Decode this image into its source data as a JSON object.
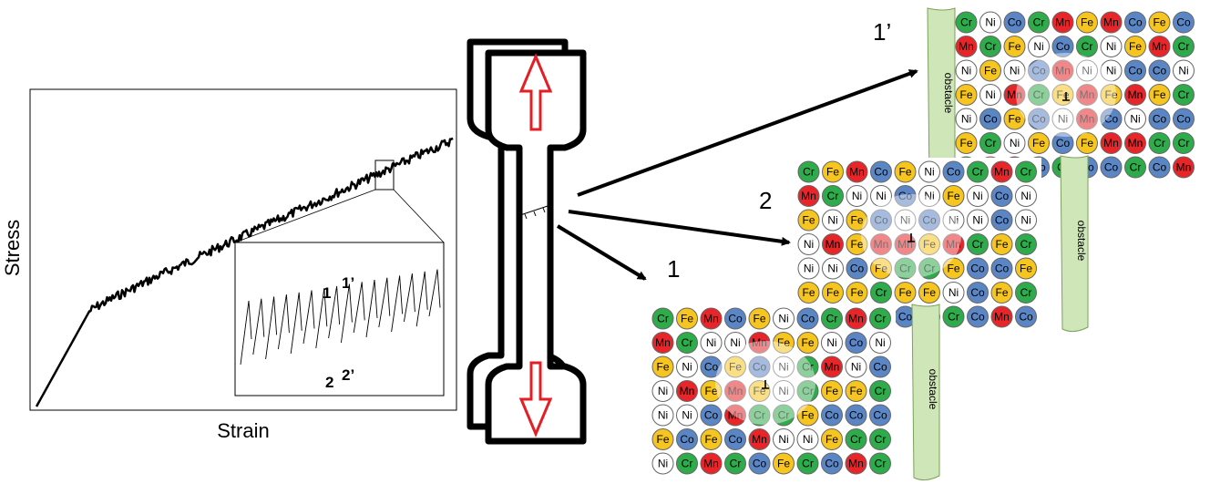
{
  "stress_strain": {
    "ylabel": "Stress",
    "xlabel": "Strain",
    "inset": {
      "labels": {
        "p1": "1",
        "p1p": "1’",
        "p2": "2",
        "p2p": "2’"
      }
    }
  },
  "specimen": {
    "arrows": [
      "tension-up",
      "tension-down"
    ]
  },
  "panels": [
    {
      "id": "1p",
      "label": "1’",
      "obstacle": "obstacle",
      "grid": [
        [
          "Cr",
          "Ni",
          "Co",
          "Cr",
          "Mn",
          "Fe",
          "Mn",
          "Co",
          "Fe",
          "Co"
        ],
        [
          "Mn",
          "Cr",
          "Fe",
          "Ni",
          "Co",
          "Cr",
          "Ni",
          "Fe",
          "Mn",
          "Cr"
        ],
        [
          "Ni",
          "Fe",
          "Ni",
          "Co",
          "Mn",
          "Ni",
          "Ni",
          "Co",
          "Co",
          "Ni"
        ],
        [
          "Fe",
          "Ni",
          "Mn",
          "Cr",
          "Fe",
          "Mn",
          "Fe",
          "Mn",
          "Fe",
          "Cr"
        ],
        [
          "Ni",
          "Co",
          "Fe",
          "Co",
          "Ni",
          "Mn",
          "Co",
          "Ni",
          "Co",
          "Co"
        ],
        [
          "Fe",
          "Cr",
          "Ni",
          "Fe",
          "Co",
          "Fe",
          "Mn",
          "Mn",
          "Cr",
          "Cr"
        ],
        [
          "Cr",
          "Fe",
          "Mn",
          "Co",
          "Cr",
          "Co",
          "Co",
          "Cr",
          "Co",
          "Mn"
        ]
      ]
    },
    {
      "id": "2",
      "label": "2",
      "obstacle": "obstacle",
      "grid": [
        [
          "Cr",
          "Fe",
          "Mn",
          "Co",
          "Fe",
          "Ni",
          "Co",
          "Cr",
          "Mn",
          "Cr"
        ],
        [
          "Mn",
          "Cr",
          "Ni",
          "Ni",
          "Co",
          "Ni",
          "Fe",
          "Ni",
          "Co",
          "Ni"
        ],
        [
          "Fe",
          "Ni",
          "Fe",
          "Co",
          "Ni",
          "Co",
          "Ni",
          "Ni",
          "Co",
          "Ni"
        ],
        [
          "Ni",
          "Mn",
          "Fe",
          "Mn",
          "Mn",
          "Fe",
          "Mn",
          "Cr",
          "Fe",
          "Cr"
        ],
        [
          "Ni",
          "Ni",
          "Co",
          "Fe",
          "Cr",
          "Cr",
          "Fe",
          "Co",
          "Co",
          "Fe"
        ],
        [
          "Fe",
          "Fe",
          "Fe",
          "Cr",
          "Fe",
          "Fe",
          "Ni",
          "Co",
          "Fe",
          "Cr"
        ],
        [
          "Ni",
          "Cr",
          "Mn",
          "Cr",
          "Co",
          "Mn",
          "Cr",
          "Co",
          "Mn",
          "Co"
        ]
      ]
    },
    {
      "id": "1",
      "label": "1",
      "obstacle": "obstacle",
      "grid": [
        [
          "Cr",
          "Fe",
          "Mn",
          "Co",
          "Fe",
          "Ni",
          "Co",
          "Cr",
          "Mn",
          "Cr"
        ],
        [
          "Mn",
          "Cr",
          "Ni",
          "Ni",
          "Mn",
          "Fe",
          "Fe",
          "Ni",
          "Co",
          "Ni"
        ],
        [
          "Fe",
          "Ni",
          "Co",
          "Fe",
          "Co",
          "Ni",
          "Cr",
          "Mn",
          "Ni",
          "Co"
        ],
        [
          "Ni",
          "Mn",
          "Fe",
          "Mn",
          "Fe",
          "Ni",
          "Cr",
          "Fe",
          "Fe",
          "Cr"
        ],
        [
          "Ni",
          "Ni",
          "Co",
          "Mn",
          "Cr",
          "Cr",
          "Fe",
          "Co",
          "Co",
          "Co"
        ],
        [
          "Fe",
          "Co",
          "Fe",
          "Co",
          "Mn",
          "Ni",
          "Ni",
          "Fe",
          "Cr",
          "Cr"
        ],
        [
          "Ni",
          "Cr",
          "Mn",
          "Cr",
          "Co",
          "Fe",
          "Cr",
          "Co",
          "Mn",
          "Cr"
        ]
      ]
    }
  ],
  "element_colors": {
    "Cr": "#2eab4a",
    "Ni": "#ffffff",
    "Co": "#5b86c6",
    "Mn": "#e8262a",
    "Fe": "#f7c520"
  },
  "obstacle_color": "#cfe6b8"
}
